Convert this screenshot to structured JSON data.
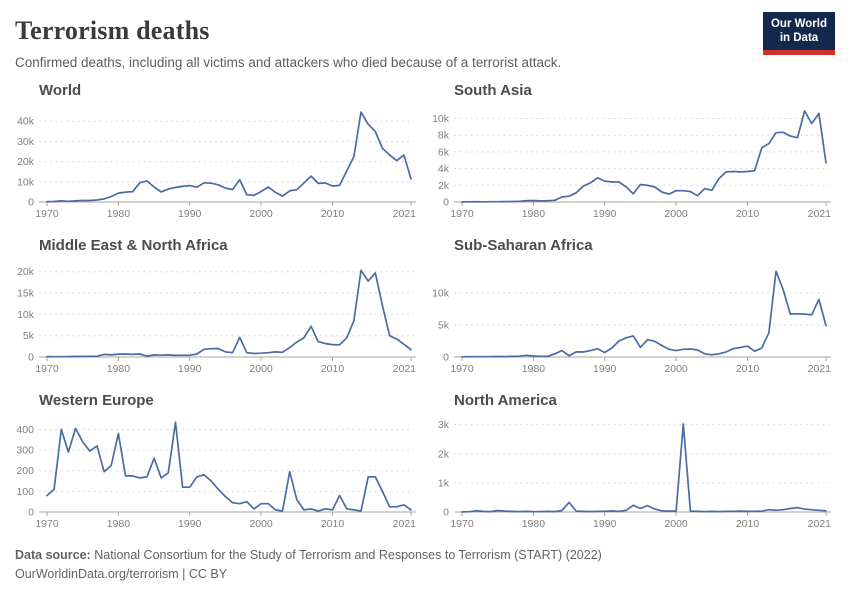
{
  "header": {
    "title": "Terrorism deaths",
    "subtitle": "Confirmed deaths, including all victims and attackers who died because of a terrorist attack.",
    "logo_line1": "Our World",
    "logo_line2": "in Data"
  },
  "footer": {
    "source_label": "Data source:",
    "source_text": "National Consortium for the Study of Terrorism and Responses to Terrorism (START) (2022)",
    "url_line": "OurWorldinData.org/terrorism | CC BY"
  },
  "colors": {
    "line": "#4a6ba3",
    "grid": "#dadada",
    "axis": "#a5a5a5",
    "tick_text": "#7f7f7f",
    "panel_title": "#4c4c4c",
    "logo_navy": "#12294d",
    "logo_red": "#d1312b"
  },
  "chart_data": {
    "type": "line",
    "title": "Terrorism deaths",
    "x_start": 1970,
    "x_end": 2021,
    "x_ticks": [
      1970,
      1980,
      1990,
      2000,
      2010,
      2021
    ],
    "grid": true,
    "legend": false,
    "panels": [
      {
        "title": "World",
        "ylim": [
          0,
          47500
        ],
        "y_ticks": [
          {
            "v": 0,
            "label": "0"
          },
          {
            "v": 10000,
            "label": "10k"
          },
          {
            "v": 20000,
            "label": "20k"
          },
          {
            "v": 30000,
            "label": "30k"
          },
          {
            "v": 40000,
            "label": "40k"
          }
        ],
        "values": [
          180,
          250,
          570,
          370,
          540,
          720,
          750,
          1000,
          1550,
          2700,
          4400,
          4900,
          5100,
          9500,
          10450,
          7400,
          5000,
          6400,
          7200,
          7700,
          8100,
          7300,
          9500,
          9300,
          8500,
          6900,
          6200,
          11000,
          3600,
          3250,
          5200,
          7400,
          4800,
          2900,
          5500,
          6100,
          9400,
          12800,
          9200,
          9400,
          7900,
          8200,
          15500,
          22500,
          44500,
          38500,
          34900,
          26500,
          23300,
          20500,
          23200,
          11500
        ]
      },
      {
        "title": "South Asia",
        "ylim": [
          0,
          11500
        ],
        "y_ticks": [
          {
            "v": 0,
            "label": "0"
          },
          {
            "v": 2000,
            "label": "2k"
          },
          {
            "v": 4000,
            "label": "4k"
          },
          {
            "v": 6000,
            "label": "6k"
          },
          {
            "v": 8000,
            "label": "8k"
          },
          {
            "v": 10000,
            "label": "10k"
          }
        ],
        "values": [
          10,
          20,
          30,
          20,
          30,
          40,
          50,
          60,
          80,
          150,
          180,
          120,
          150,
          200,
          600,
          700,
          1100,
          1900,
          2300,
          2900,
          2500,
          2400,
          2400,
          1800,
          1000,
          2100,
          2000,
          1800,
          1200,
          950,
          1350,
          1350,
          1250,
          750,
          1600,
          1400,
          2800,
          3600,
          3650,
          3600,
          3650,
          3750,
          6500,
          7000,
          8300,
          8350,
          7900,
          7700,
          10900,
          9400,
          10600,
          4700
        ]
      },
      {
        "title": "Middle East & North Africa",
        "ylim": [
          0,
          22500
        ],
        "y_ticks": [
          {
            "v": 0,
            "label": "0"
          },
          {
            "v": 5000,
            "label": "5k"
          },
          {
            "v": 10000,
            "label": "10k"
          },
          {
            "v": 15000,
            "label": "15k"
          },
          {
            "v": 20000,
            "label": "20k"
          }
        ],
        "values": [
          90,
          60,
          80,
          100,
          120,
          150,
          130,
          180,
          620,
          500,
          690,
          700,
          620,
          700,
          220,
          500,
          420,
          500,
          380,
          420,
          400,
          700,
          1800,
          1950,
          2000,
          1200,
          1000,
          4600,
          1000,
          820,
          900,
          1000,
          1200,
          1100,
          2200,
          3500,
          4500,
          7200,
          3600,
          3150,
          2900,
          2850,
          4500,
          8500,
          20300,
          17800,
          19700,
          12000,
          5000,
          4200,
          3000,
          1700
        ]
      },
      {
        "title": "Sub-Saharan Africa",
        "ylim": [
          0,
          15000
        ],
        "y_ticks": [
          {
            "v": 0,
            "label": "0"
          },
          {
            "v": 5000,
            "label": "5k"
          },
          {
            "v": 10000,
            "label": "10k"
          }
        ],
        "values": [
          30,
          40,
          50,
          40,
          60,
          80,
          70,
          90,
          120,
          260,
          160,
          110,
          100,
          500,
          1000,
          200,
          800,
          780,
          1000,
          1300,
          700,
          1400,
          2500,
          3000,
          3300,
          1500,
          2700,
          2450,
          1800,
          1200,
          1000,
          1200,
          1250,
          1100,
          500,
          350,
          500,
          800,
          1300,
          1500,
          1700,
          900,
          1400,
          3800,
          13400,
          10500,
          6700,
          6750,
          6700,
          6600,
          9000,
          4900
        ]
      },
      {
        "title": "Western Europe",
        "ylim": [
          0,
          465
        ],
        "y_ticks": [
          {
            "v": 0,
            "label": "0"
          },
          {
            "v": 100,
            "label": "100"
          },
          {
            "v": 200,
            "label": "200"
          },
          {
            "v": 300,
            "label": "300"
          },
          {
            "v": 400,
            "label": "400"
          }
        ],
        "values": [
          80,
          110,
          400,
          290,
          405,
          340,
          295,
          320,
          195,
          225,
          380,
          175,
          175,
          165,
          170,
          260,
          165,
          190,
          435,
          120,
          120,
          170,
          180,
          150,
          110,
          75,
          45,
          40,
          50,
          15,
          40,
          40,
          10,
          5,
          195,
          60,
          10,
          15,
          5,
          15,
          10,
          80,
          15,
          10,
          5,
          170,
          170,
          100,
          25,
          25,
          35,
          10
        ]
      },
      {
        "title": "North America",
        "ylim": [
          0,
          3300
        ],
        "y_ticks": [
          {
            "v": 0,
            "label": "0"
          },
          {
            "v": 1000,
            "label": "1k"
          },
          {
            "v": 2000,
            "label": "2k"
          },
          {
            "v": 3000,
            "label": "3k"
          }
        ],
        "values": [
          5,
          10,
          40,
          20,
          15,
          50,
          30,
          20,
          15,
          20,
          10,
          15,
          20,
          15,
          50,
          330,
          30,
          20,
          15,
          20,
          25,
          35,
          20,
          60,
          230,
          120,
          220,
          100,
          40,
          30,
          30,
          3030,
          30,
          20,
          15,
          20,
          15,
          20,
          25,
          30,
          20,
          25,
          30,
          80,
          60,
          80,
          120,
          150,
          100,
          80,
          60,
          40
        ]
      }
    ]
  }
}
